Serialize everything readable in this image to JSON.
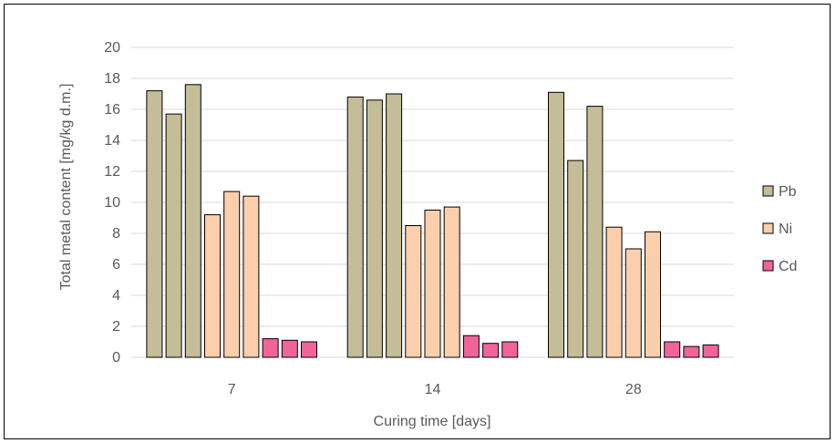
{
  "chart_data": {
    "type": "bar",
    "categories": [
      "7",
      "14",
      "28"
    ],
    "series": [
      {
        "name": "Pb",
        "color": "#c4bd97",
        "values": [
          [
            17.2,
            15.7,
            17.6
          ],
          [
            16.8,
            16.6,
            17.0
          ],
          [
            17.1,
            12.7,
            16.2
          ]
        ]
      },
      {
        "name": "Ni",
        "color": "#fbcfac",
        "values": [
          [
            9.2,
            10.7,
            10.4
          ],
          [
            8.5,
            9.5,
            9.7
          ],
          [
            8.4,
            7.0,
            8.1
          ]
        ]
      },
      {
        "name": "Cd",
        "color": "#f0649a",
        "values": [
          [
            1.2,
            1.1,
            1.0
          ],
          [
            1.4,
            0.9,
            1.0
          ],
          [
            1.0,
            0.7,
            0.8
          ]
        ]
      }
    ],
    "xlabel": "Curing time [days]",
    "ylabel": "Total metal content [mg/kg d.m.]",
    "ylim": [
      0,
      20
    ],
    "yticks": [
      0,
      2,
      4,
      6,
      8,
      10,
      12,
      14,
      16,
      18,
      20
    ],
    "grid": true,
    "legend": "right",
    "stroke_color": "#000000",
    "grid_color": "#d9d9d9"
  }
}
